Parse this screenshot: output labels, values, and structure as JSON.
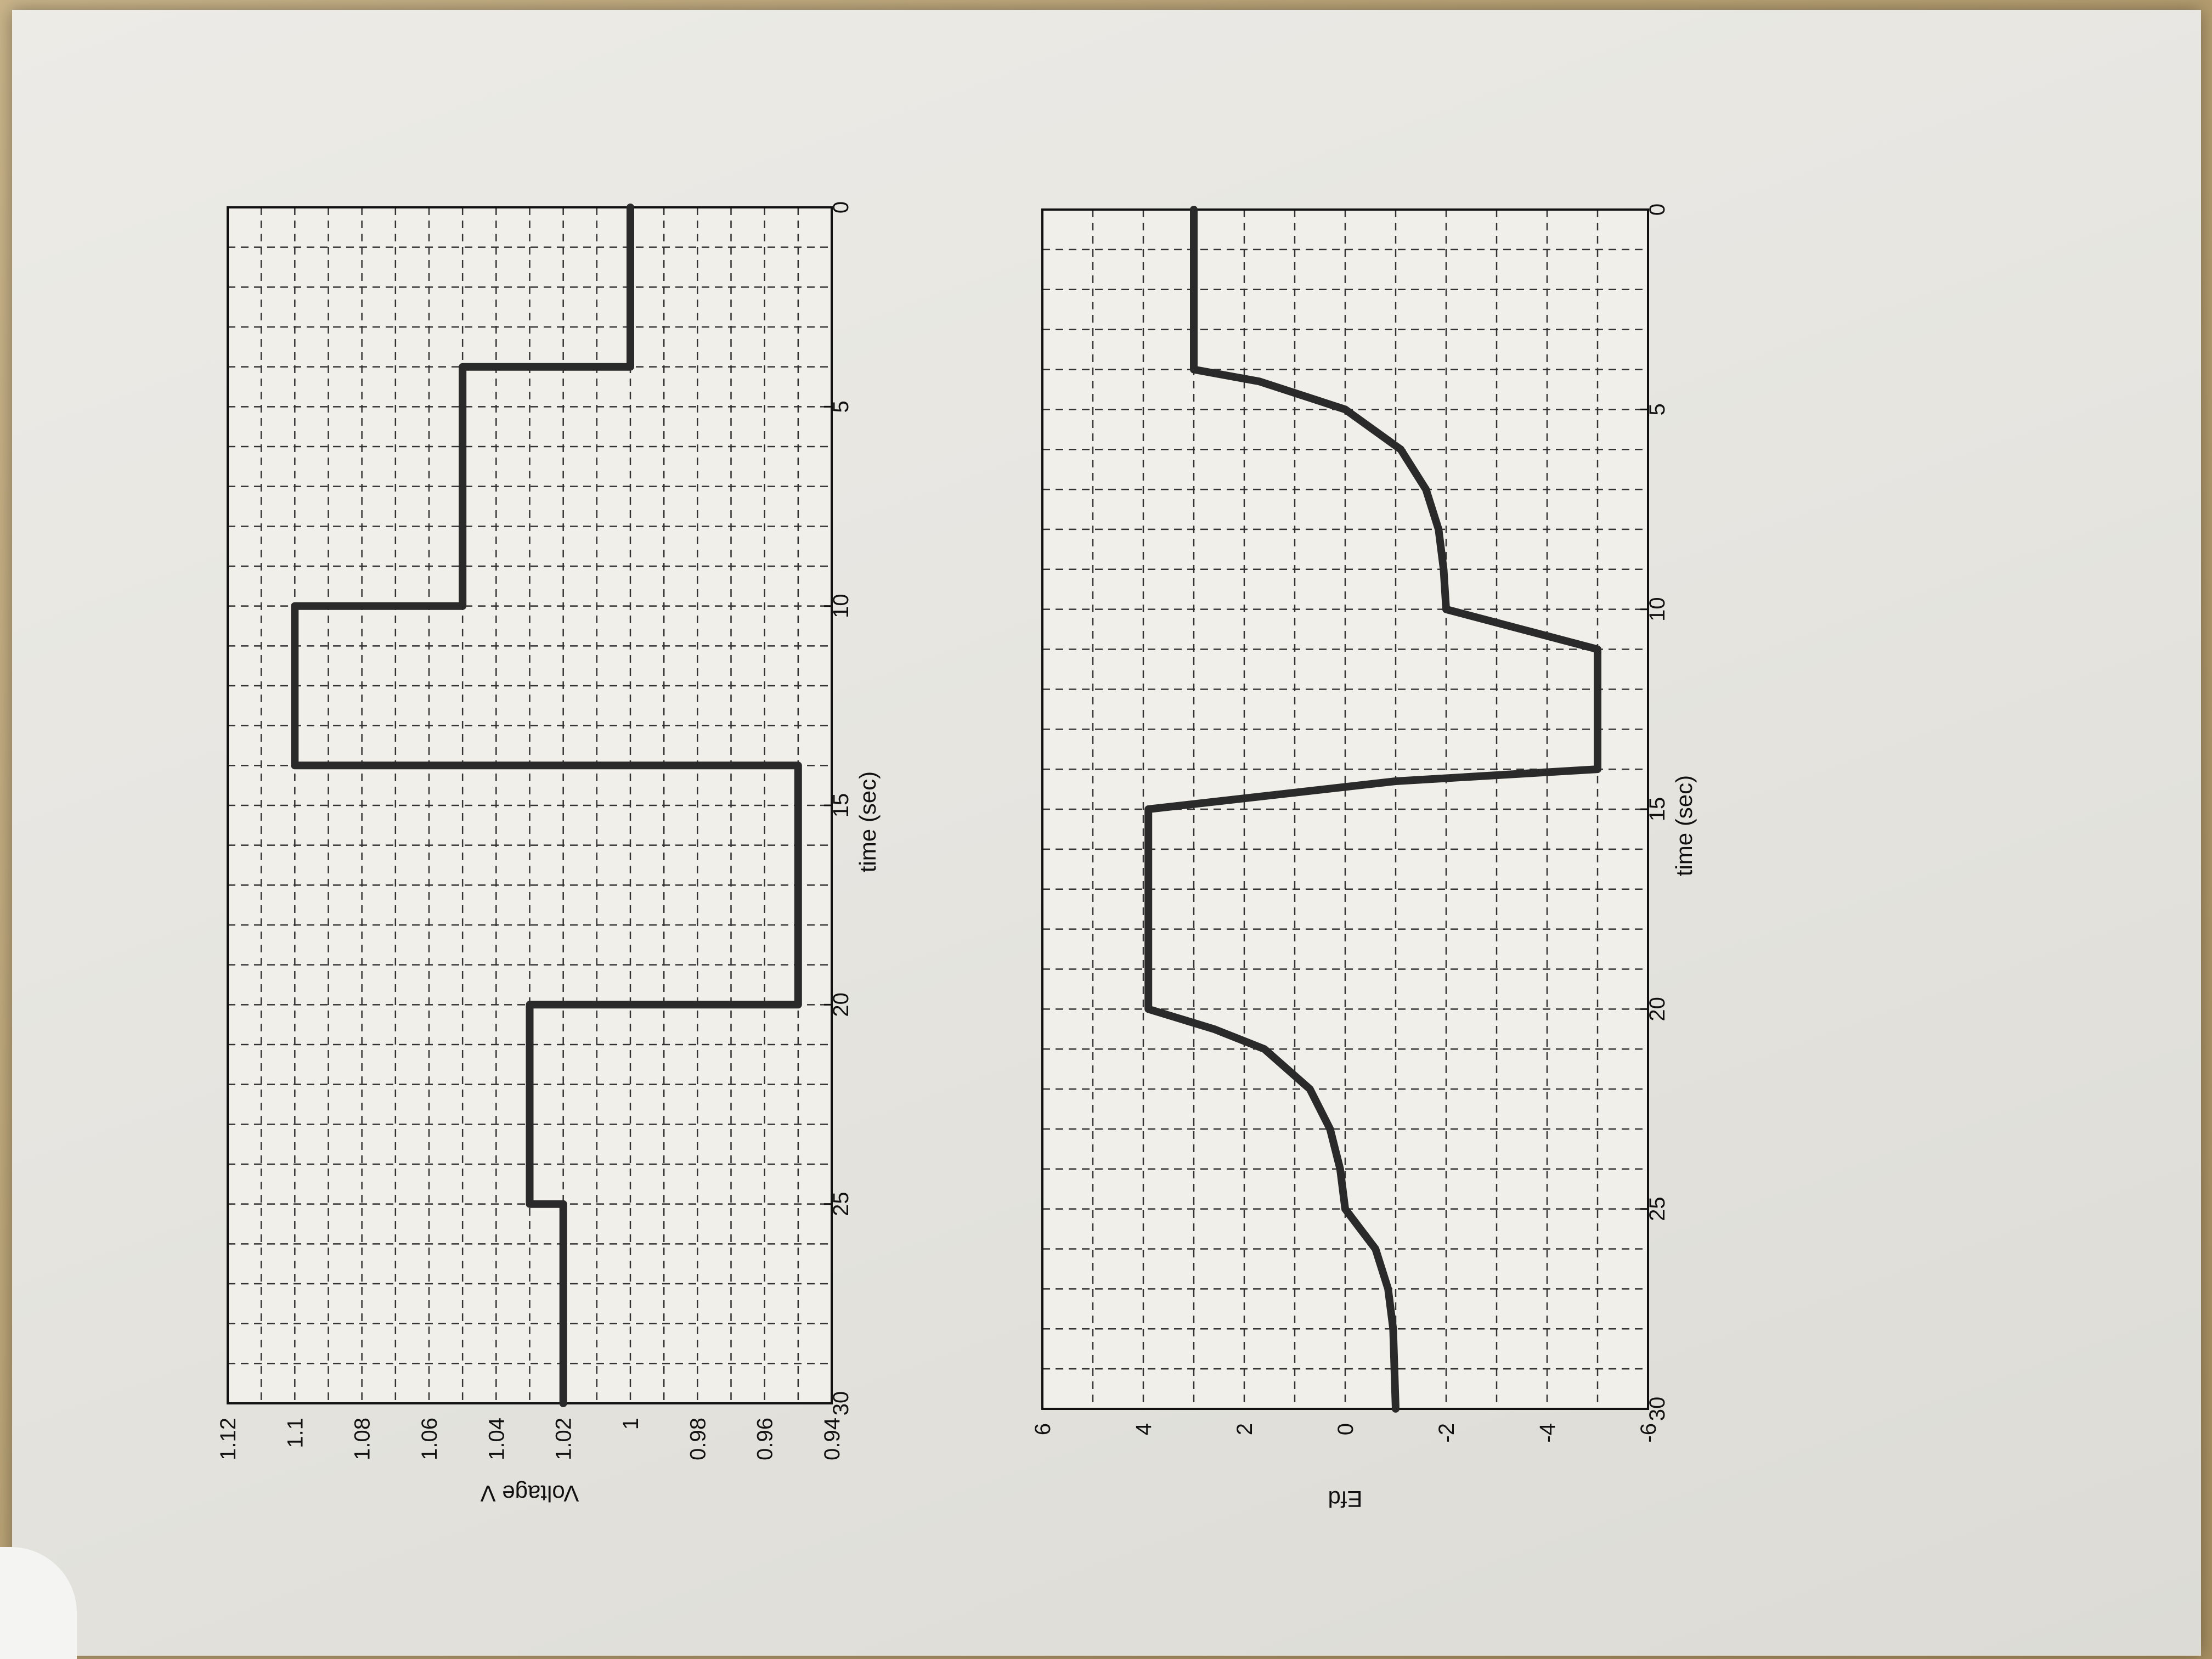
{
  "chart_data": [
    {
      "type": "line",
      "xlabel": "time (sec)",
      "ylabel": "Voltage V",
      "xlim": [
        0,
        30
      ],
      "ylim": [
        0.94,
        1.12
      ],
      "xticks": [
        "0",
        "5",
        "10",
        "15",
        "20",
        "25",
        "30"
      ],
      "yticks": [
        "0.94",
        "0.96",
        "0.98",
        "1",
        "1.02",
        "1.04",
        "1.06",
        "1.08",
        "1.1",
        "1.12"
      ],
      "grid": true,
      "series": [
        {
          "x": [
            0,
            4,
            4,
            10,
            10,
            14,
            14,
            20,
            20,
            25,
            25,
            30
          ],
          "y": [
            1.0,
            1.0,
            1.05,
            1.05,
            1.1,
            1.1,
            0.95,
            0.95,
            1.03,
            1.03,
            1.02,
            1.02
          ]
        }
      ]
    },
    {
      "type": "line",
      "xlabel": "time (sec)",
      "ylabel": "Efd",
      "xlim": [
        0,
        30
      ],
      "ylim": [
        -6,
        6
      ],
      "xticks": [
        "0",
        "5",
        "10",
        "15",
        "20",
        "25",
        "30"
      ],
      "yticks": [
        "-6",
        "-4",
        "-2",
        "0",
        "2",
        "4",
        "6"
      ],
      "grid": true,
      "series": [
        {
          "x": [
            0,
            4,
            4.3,
            5,
            6,
            7,
            8,
            9,
            10,
            10.5,
            11,
            14,
            14.3,
            15,
            20,
            20.5,
            21,
            22,
            23,
            24,
            25,
            25.5,
            26,
            27,
            28,
            30
          ],
          "y": [
            3,
            3,
            1.7,
            0,
            -1.1,
            -1.6,
            -1.85,
            -1.95,
            -2,
            -3.5,
            -5,
            -5,
            -1,
            3.9,
            3.9,
            2.6,
            1.6,
            0.7,
            0.3,
            0.1,
            0,
            -0.3,
            -0.6,
            -0.85,
            -0.95,
            -1
          ]
        }
      ]
    }
  ]
}
